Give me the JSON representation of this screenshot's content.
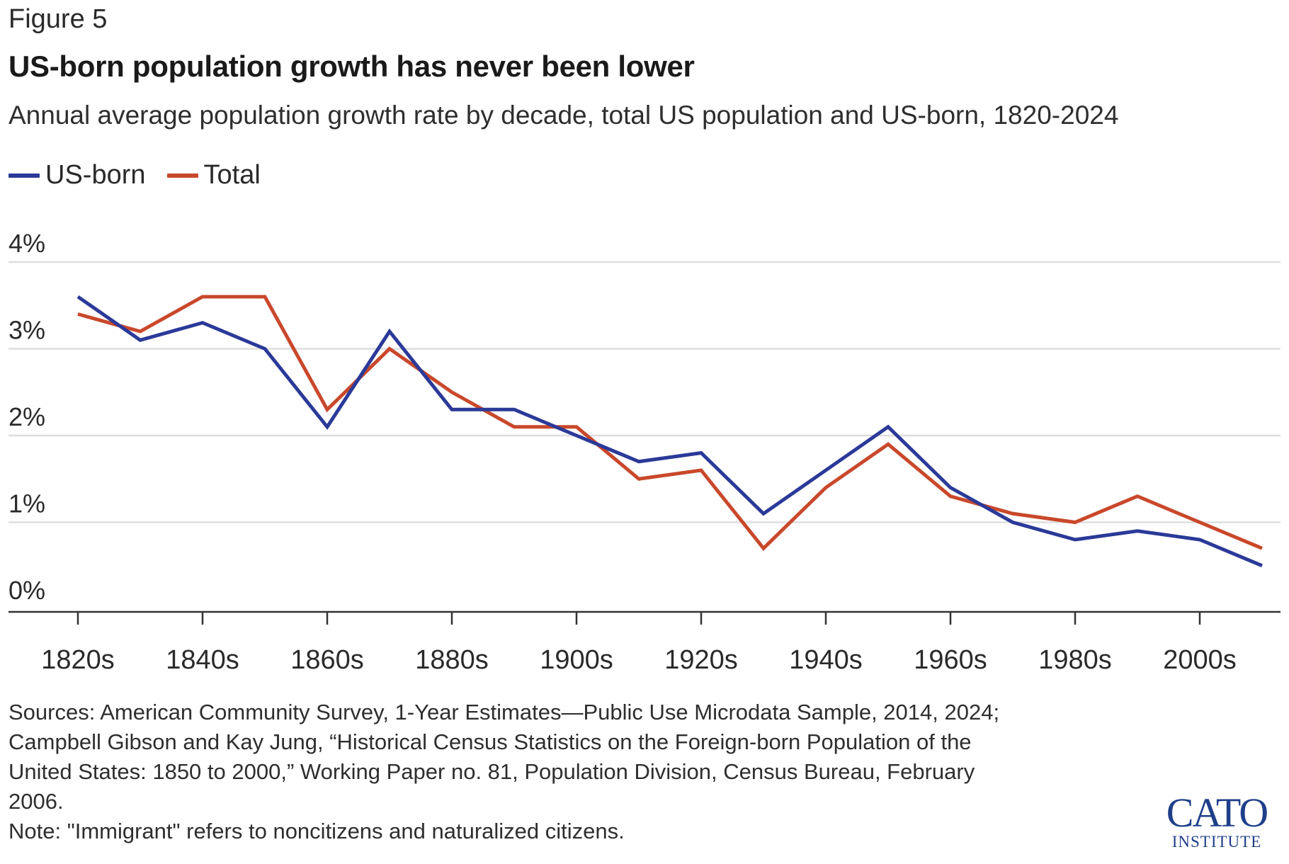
{
  "figure_label": "Figure 5",
  "title": "US-born population growth has never been lower",
  "subtitle": "Annual average population growth rate by decade, total US population and US-born, 1820-2024",
  "legend": [
    {
      "name": "US-born",
      "color": "#2b3a98"
    },
    {
      "name": "Total",
      "color": "#c9482b"
    }
  ],
  "chart_data": {
    "type": "line",
    "x": [
      "1820s",
      "1830s",
      "1840s",
      "1850s",
      "1860s",
      "1870s",
      "1880s",
      "1890s",
      "1900s",
      "1910s",
      "1920s",
      "1930s",
      "1940s",
      "1950s",
      "1960s",
      "1970s",
      "1980s",
      "1990s",
      "2000s",
      "2010s"
    ],
    "x_tick_labels": [
      "1820s",
      "1840s",
      "1860s",
      "1880s",
      "1900s",
      "1920s",
      "1940s",
      "1960s",
      "1980s",
      "2000s"
    ],
    "series": [
      {
        "name": "US-born",
        "color": "#2b3a98",
        "values": [
          3.6,
          3.1,
          3.3,
          3.0,
          2.1,
          3.2,
          2.3,
          2.3,
          2.0,
          1.7,
          1.8,
          1.1,
          1.6,
          2.1,
          1.4,
          1.0,
          0.8,
          0.9,
          0.8,
          0.5
        ]
      },
      {
        "name": "Total",
        "color": "#c9482b",
        "values": [
          3.4,
          3.2,
          3.6,
          3.6,
          2.3,
          3.0,
          2.5,
          2.1,
          2.1,
          1.5,
          1.6,
          0.7,
          1.4,
          1.9,
          1.3,
          1.1,
          1.0,
          1.3,
          1.0,
          0.7
        ]
      }
    ],
    "ylim": [
      0,
      4
    ],
    "y_ticks": [
      "0%",
      "1%",
      "2%",
      "3%",
      "4%"
    ],
    "grid": true,
    "legend_position": "top-left"
  },
  "sources": {
    "line1": "Sources: American Community Survey, 1-Year Estimates—Public Use Microdata Sample, 2014, 2024;",
    "line2": "Campbell Gibson and Kay Jung, “Historical Census Statistics on the Foreign-born Population of the",
    "line3": "United States: 1850 to 2000,” Working Paper no. 81, Population Division, Census Bureau, February",
    "line4": "2006.",
    "note": "Note: \"Immigrant\" refers to noncitizens and naturalized citizens."
  },
  "logo": {
    "main": "CATO",
    "sub": "INSTITUTE"
  }
}
